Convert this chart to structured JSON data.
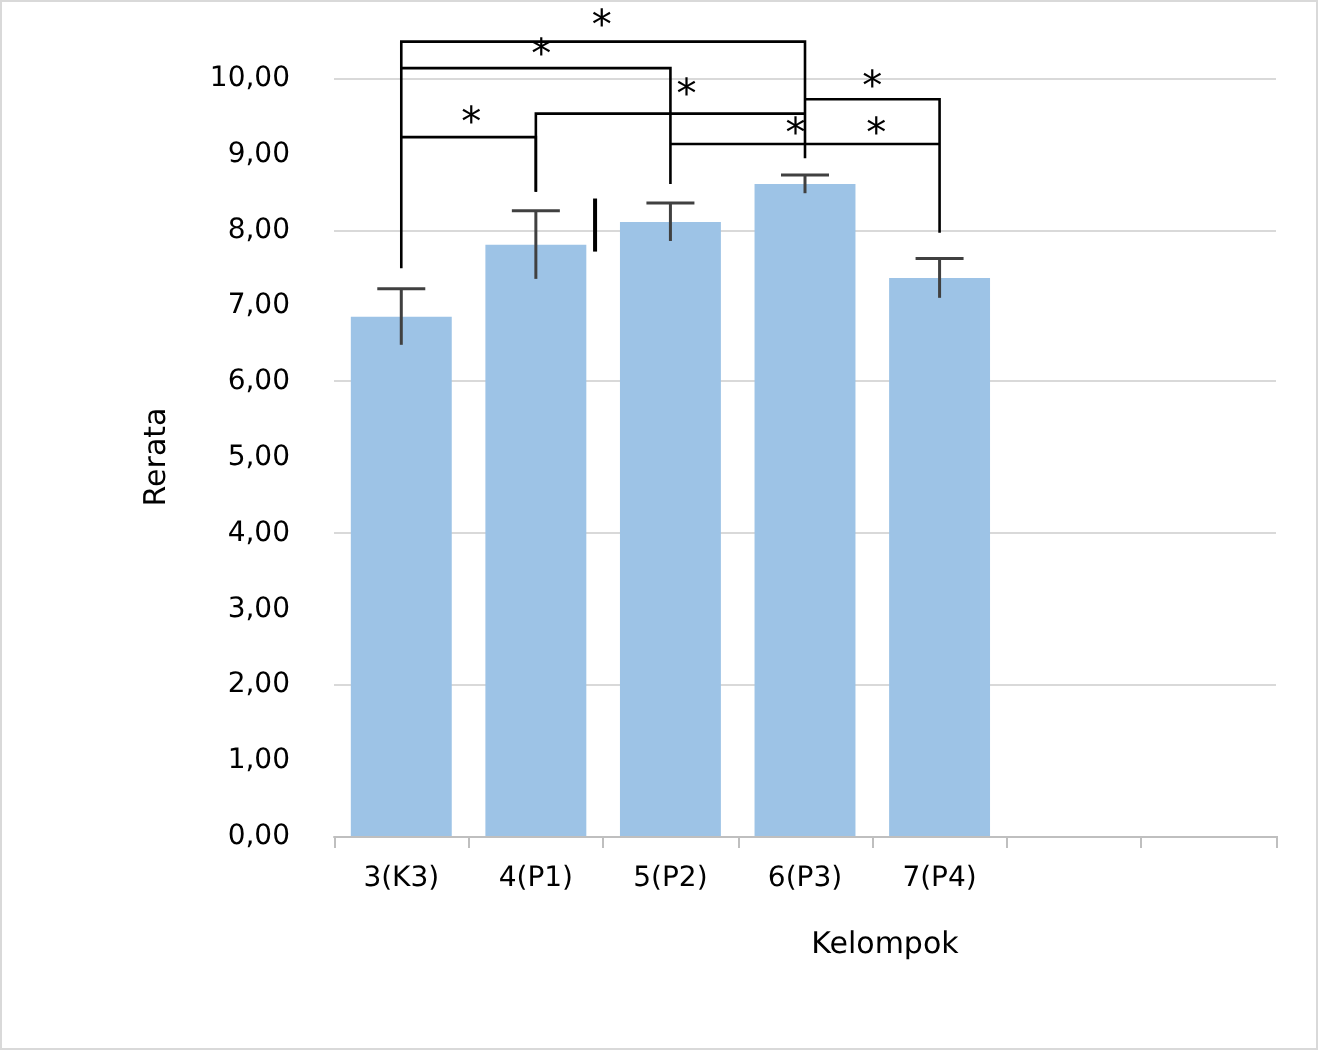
{
  "chart_data": {
    "type": "bar",
    "xlabel": "Kelompok",
    "ylabel": "Rerata",
    "categories": [
      "3(K3)",
      "4(P1)",
      "5(P2)",
      "6(P3)",
      "7(P4)",
      null,
      null
    ],
    "values": [
      6.85,
      7.8,
      8.1,
      8.6,
      7.36,
      null,
      null
    ],
    "errors": [
      0.37,
      0.45,
      0.25,
      0.12,
      0.26,
      null,
      null
    ],
    "color": "#9dc3e6",
    "ylim": [
      0,
      10
    ],
    "yticks": [
      {
        "value": 0,
        "label": "0,00"
      },
      {
        "value": 1,
        "label": "1,00"
      },
      {
        "value": 2,
        "label": "2,00"
      },
      {
        "value": 3,
        "label": "3,00"
      },
      {
        "value": 4,
        "label": "4,00"
      },
      {
        "value": 5,
        "label": "5,00"
      },
      {
        "value": 6,
        "label": "6,00"
      },
      {
        "value": 7,
        "label": "7,00"
      },
      {
        "value": 8,
        "label": "8,00"
      },
      {
        "value": 9,
        "label": "9,00"
      },
      {
        "value": 10,
        "label": "10,00"
      }
    ],
    "grid": "y",
    "annotations": [
      "*",
      "*",
      "*",
      "*",
      "*",
      "*",
      "*"
    ]
  }
}
